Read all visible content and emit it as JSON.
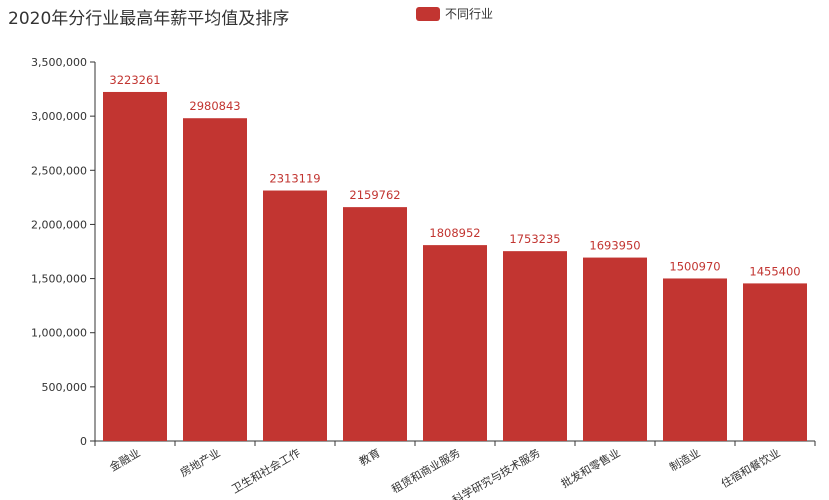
{
  "chart_data": {
    "type": "bar",
    "title": "2020年分行业最高年薪平均值及排序",
    "legend": "top-center",
    "categories": [
      "金融业",
      "房地产业",
      "卫生和社会工作",
      "教育",
      "租赁和商业服务",
      "科学研究与技术服务",
      "批发和零售业",
      "制造业",
      "住宿和餐饮业"
    ],
    "series": [
      {
        "name": "不同行业",
        "values": [
          3223261,
          2980843,
          2313119,
          2159762,
          1808952,
          1753235,
          1693950,
          1500970,
          1455400
        ]
      }
    ],
    "y_ticks": [
      "0",
      "500,000",
      "1,000,000",
      "1,500,000",
      "2,000,000",
      "2,500,000",
      "3,000,000",
      "3,500,000"
    ],
    "ylim": [
      0,
      3500000
    ],
    "grid": false,
    "colors": {
      "bar": "#c23531",
      "axis": "#333333"
    }
  }
}
